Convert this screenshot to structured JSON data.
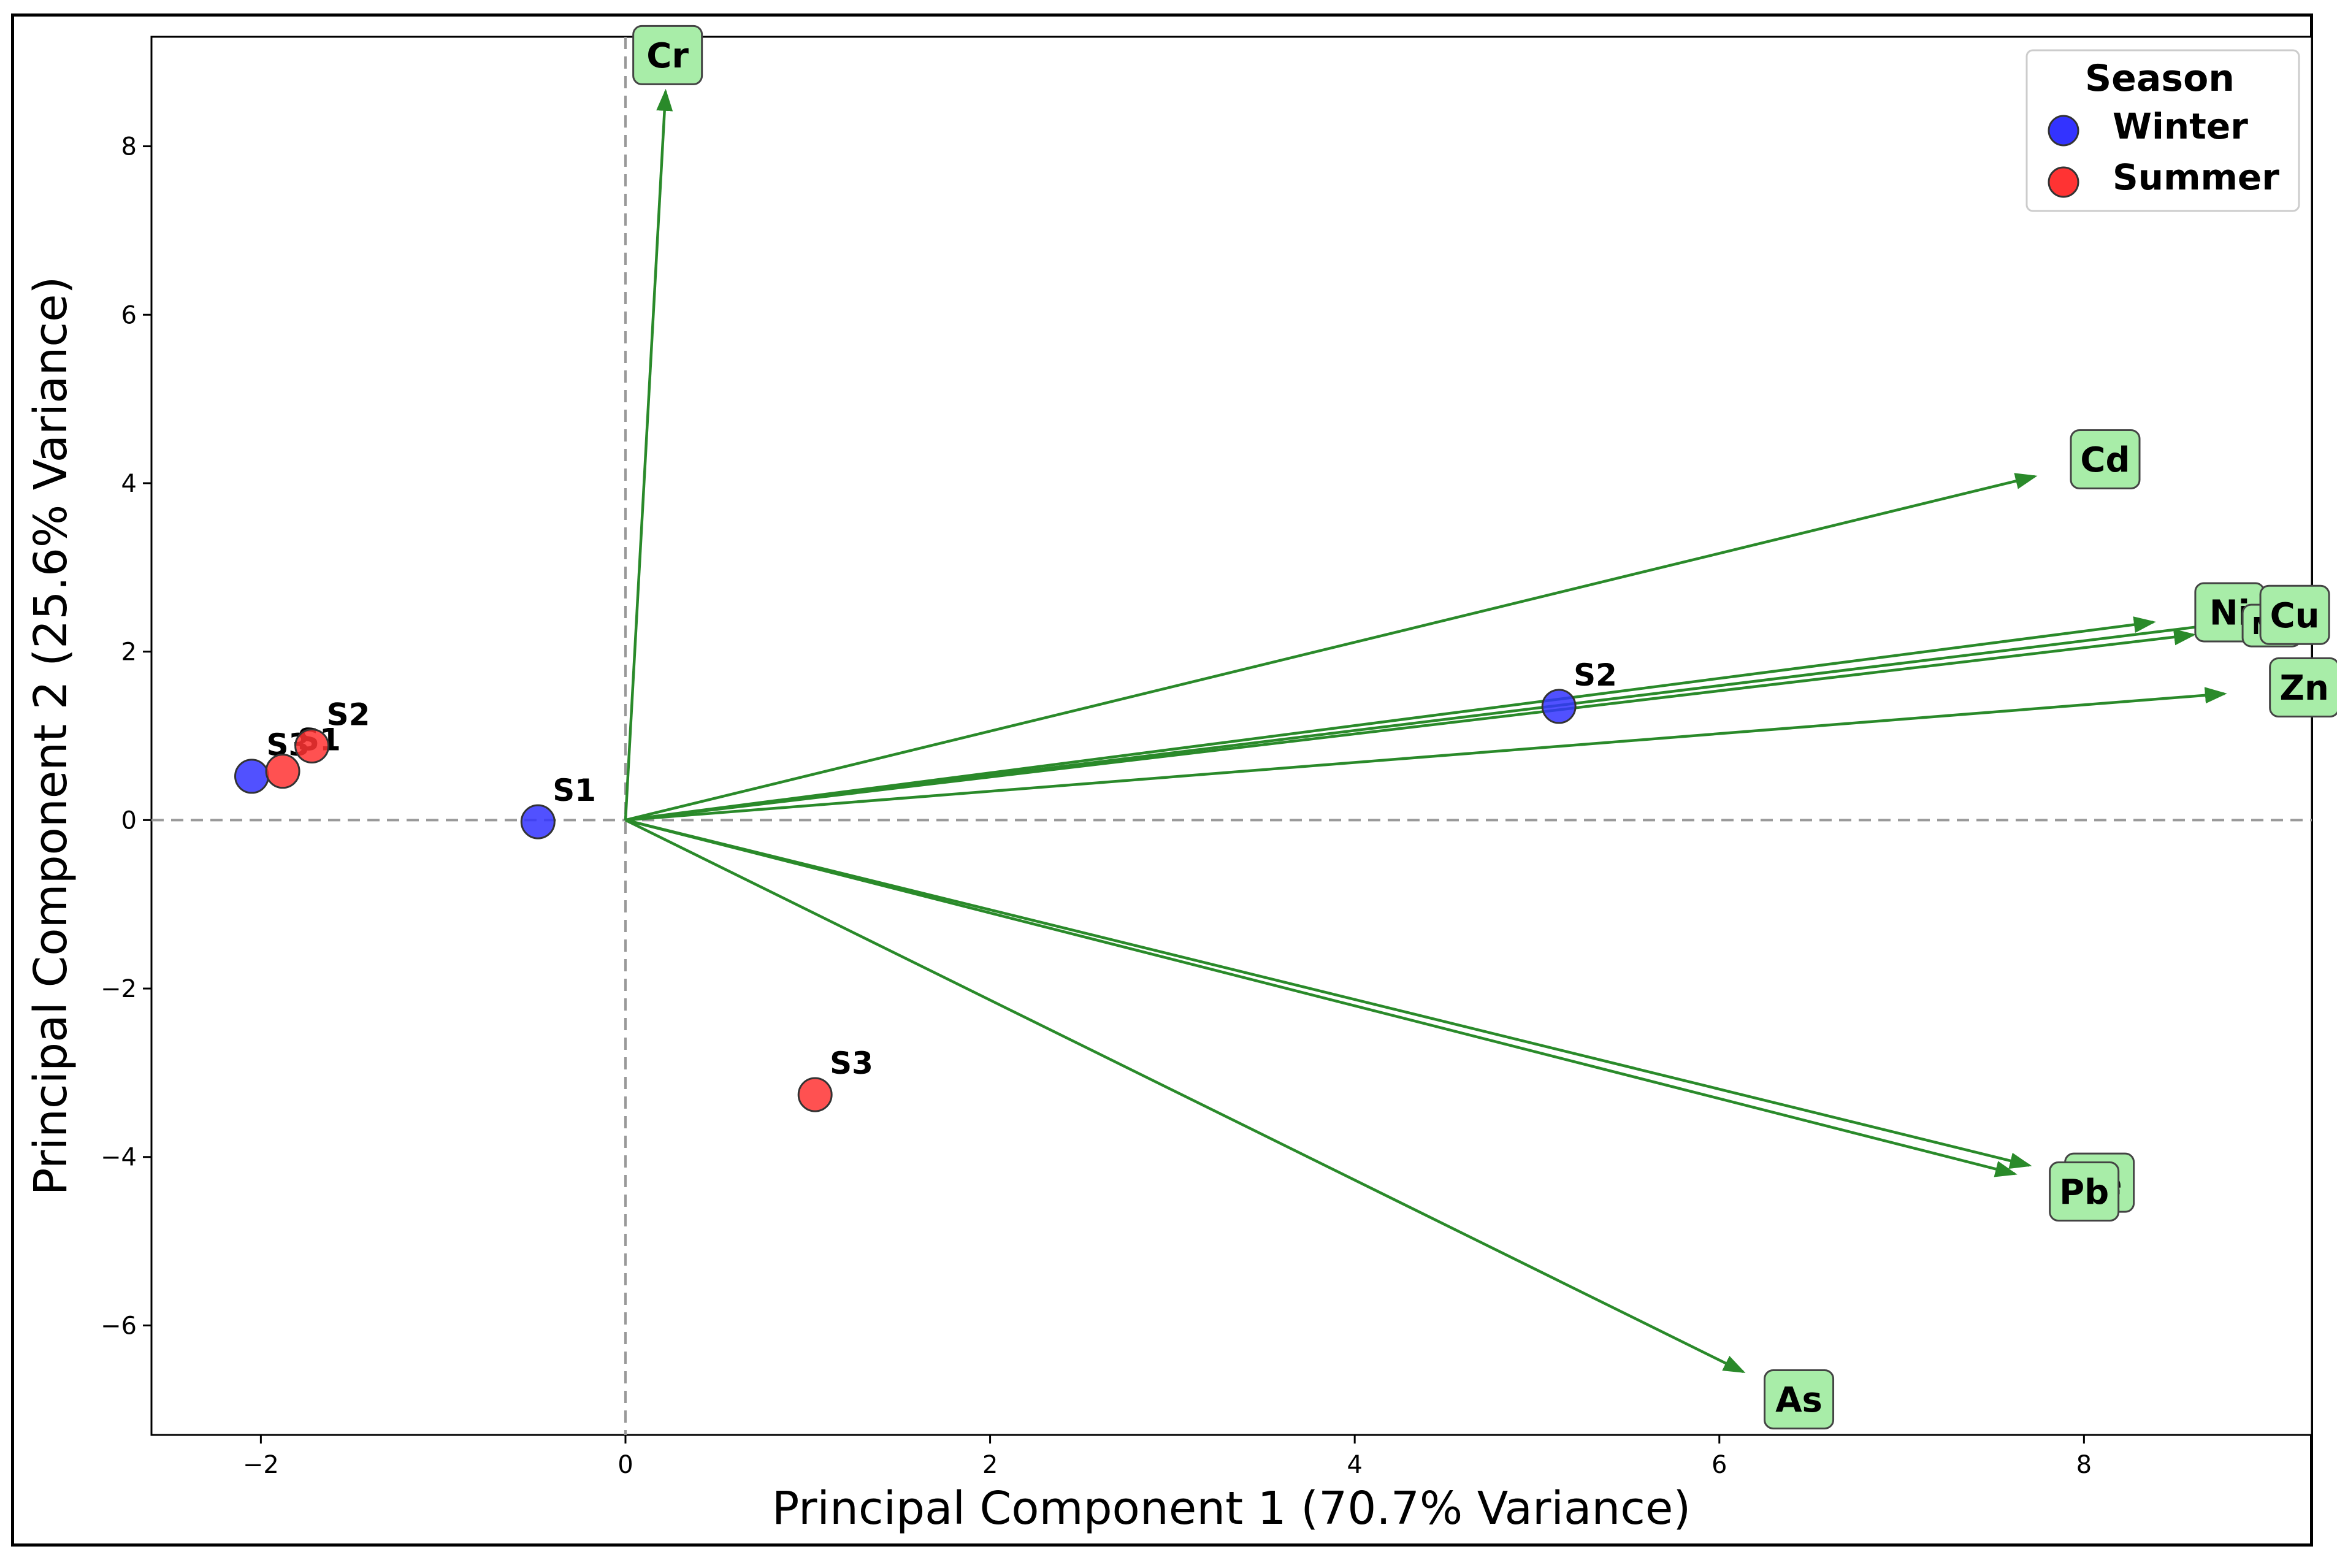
{
  "chart_data": {
    "type": "scatter",
    "title": "",
    "xlabel": "Principal Component 1 (70.7% Variance)",
    "ylabel": "Principal Component 2 (25.6% Variance)",
    "xlim": [
      -2.6,
      9.25
    ],
    "ylim": [
      -7.3,
      9.3
    ],
    "xticks": [
      -2,
      0,
      2,
      4,
      6,
      8
    ],
    "yticks": [
      -6,
      -4,
      -2,
      0,
      2,
      4,
      6,
      8
    ],
    "grid": false,
    "reference_lines": {
      "x": 0,
      "y": 0,
      "style": "dashed",
      "color": "#999999"
    },
    "legend": {
      "title": "Season",
      "position": "top-right",
      "entries": [
        {
          "name": "Winter",
          "color": "#3333ff"
        },
        {
          "name": "Summer",
          "color": "#ff3333"
        }
      ]
    },
    "series": [
      {
        "name": "Winter",
        "color": "#3333ff",
        "points": [
          {
            "label": "S1",
            "x": -0.48,
            "y": -0.02
          },
          {
            "label": "S2",
            "x": 5.12,
            "y": 1.35
          },
          {
            "label": "S3",
            "x": -2.05,
            "y": 0.52
          }
        ]
      },
      {
        "name": "Summer",
        "color": "#ff3333",
        "points": [
          {
            "label": "S1",
            "x": -1.88,
            "y": 0.58
          },
          {
            "label": "S2",
            "x": -1.72,
            "y": 0.88
          },
          {
            "label": "S3",
            "x": 1.04,
            "y": -3.26
          }
        ]
      }
    ],
    "loadings": [
      {
        "label": "Cr",
        "x": 0.22,
        "y": 8.65
      },
      {
        "label": "Cd",
        "x": 7.73,
        "y": 4.08
      },
      {
        "label": "Ni",
        "x": 8.38,
        "y": 2.35
      },
      {
        "label": "Mn",
        "x": 8.6,
        "y": 2.2
      },
      {
        "label": "Cu",
        "x": 8.72,
        "y": 2.32
      },
      {
        "label": "Zn",
        "x": 8.77,
        "y": 1.5
      },
      {
        "label": "Fe",
        "x": 7.7,
        "y": -4.1
      },
      {
        "label": "Pb",
        "x": 7.62,
        "y": -4.2
      },
      {
        "label": "As",
        "x": 6.13,
        "y": -6.55
      }
    ],
    "loading_color": "#2a8a2a",
    "label_box_color": "#a8eda8"
  }
}
